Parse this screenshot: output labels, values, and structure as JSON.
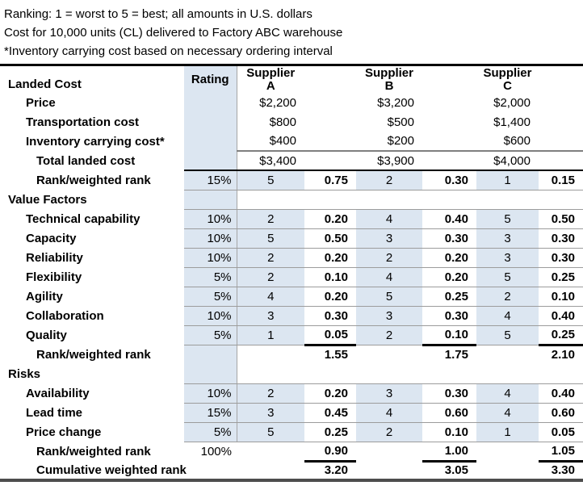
{
  "colors": {
    "shade_blue": "#dce6f1",
    "thin_border": "#9c9c9c",
    "top_rule": "#000000",
    "bottom_rule": "#4d4d4d",
    "text": "#000000"
  },
  "notes": [
    "Ranking: 1 = worst to 5 = best; all amounts in U.S. dollars",
    "Cost for 10,000 units (CL) delivered to Factory ABC warehouse",
    "*Inventory carrying cost based on necessary ordering interval"
  ],
  "table": {
    "header": {
      "label": "Landed Cost",
      "rating": "Rating",
      "suppliers": [
        "Supplier\nA",
        "Supplier\nB",
        "Supplier\nC"
      ]
    },
    "columns": [
      "label",
      "rating",
      "rank_a",
      "weighted_a",
      "rank_b",
      "weighted_b",
      "rank_c",
      "weighted_c"
    ],
    "rows": [
      {
        "label": "Price",
        "cells": [
          "",
          "$2,200",
          "",
          "$3,200",
          "",
          "$2,000",
          ""
        ]
      },
      {
        "label": "Transportation cost",
        "cells": [
          "",
          "$800",
          "",
          "$500",
          "",
          "$1,400",
          ""
        ]
      },
      {
        "label": "Inventory carrying cost*",
        "cells": [
          "",
          "$400",
          "",
          "$200",
          "",
          "$600",
          ""
        ]
      },
      {
        "label": "Total landed cost",
        "cells": [
          "",
          "$3,400",
          "",
          "$3,900",
          "",
          "$4,000",
          ""
        ]
      },
      {
        "label": "Rank/weighted rank",
        "cells": [
          "15%",
          "5",
          "0.75",
          "2",
          "0.30",
          "1",
          "0.15"
        ]
      },
      {
        "label": "Value Factors",
        "cells": [
          "",
          "",
          "",
          "",
          "",
          "",
          ""
        ]
      },
      {
        "label": "Technical capability",
        "cells": [
          "10%",
          "2",
          "0.20",
          "4",
          "0.40",
          "5",
          "0.50"
        ]
      },
      {
        "label": "Capacity",
        "cells": [
          "10%",
          "5",
          "0.50",
          "3",
          "0.30",
          "3",
          "0.30"
        ]
      },
      {
        "label": "Reliability",
        "cells": [
          "10%",
          "2",
          "0.20",
          "2",
          "0.20",
          "3",
          "0.30"
        ]
      },
      {
        "label": "Flexibility",
        "cells": [
          "5%",
          "2",
          "0.10",
          "4",
          "0.20",
          "5",
          "0.25"
        ]
      },
      {
        "label": "Agility",
        "cells": [
          "5%",
          "4",
          "0.20",
          "5",
          "0.25",
          "2",
          "0.10"
        ]
      },
      {
        "label": "Collaboration",
        "cells": [
          "10%",
          "3",
          "0.30",
          "3",
          "0.30",
          "4",
          "0.40"
        ]
      },
      {
        "label": "Quality",
        "cells": [
          "5%",
          "1",
          "0.05",
          "2",
          "0.10",
          "5",
          "0.25"
        ]
      },
      {
        "label": "Rank/weighted rank",
        "cells": [
          "",
          "",
          "1.55",
          "",
          "1.75",
          "",
          "2.10"
        ]
      },
      {
        "label": "Risks",
        "cells": [
          "",
          "",
          "",
          "",
          "",
          "",
          ""
        ]
      },
      {
        "label": "Availability",
        "cells": [
          "10%",
          "2",
          "0.20",
          "3",
          "0.30",
          "4",
          "0.40"
        ]
      },
      {
        "label": "Lead time",
        "cells": [
          "15%",
          "3",
          "0.45",
          "4",
          "0.60",
          "4",
          "0.60"
        ]
      },
      {
        "label": "Price change",
        "cells": [
          "5%",
          "5",
          "0.25",
          "2",
          "0.10",
          "1",
          "0.05"
        ]
      },
      {
        "label": "Rank/weighted rank",
        "cells": [
          "100%",
          "",
          "0.90",
          "",
          "1.00",
          "",
          "1.05"
        ]
      },
      {
        "label": "Cumulative weighted rank",
        "cells": [
          "",
          "",
          "3.20",
          "",
          "3.05",
          "",
          "3.30"
        ]
      }
    ]
  }
}
